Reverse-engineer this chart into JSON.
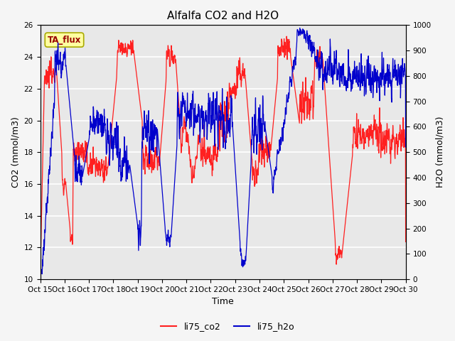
{
  "title": "Alfalfa CO2 and H2O",
  "xlabel": "Time",
  "ylabel_left": "CO2 (mmol/m3)",
  "ylabel_right": "H2O (mmol/m3)",
  "ylim_left": [
    10,
    26
  ],
  "ylim_right": [
    0,
    1000
  ],
  "yticks_left": [
    10,
    12,
    14,
    16,
    18,
    20,
    22,
    24,
    26
  ],
  "yticks_right": [
    0,
    100,
    200,
    300,
    400,
    500,
    600,
    700,
    800,
    900,
    1000
  ],
  "xtick_labels": [
    "Oct 15",
    "Oct 16",
    "Oct 17",
    "Oct 18",
    "Oct 19",
    "Oct 20",
    "Oct 21",
    "Oct 22",
    "Oct 23",
    "Oct 24",
    "Oct 25",
    "Oct 26",
    "Oct 27",
    "Oct 28",
    "Oct 29",
    "Oct 30"
  ],
  "co2_color": "#FF2020",
  "h2o_color": "#0000CC",
  "legend_label_co2": "li75_co2",
  "legend_label_h2o": "li75_h2o",
  "annotation_text": "TA_flux",
  "annotation_bg": "#FFFFA0",
  "annotation_border": "#AAAA00",
  "plot_bg_color": "#E8E8E8",
  "fig_bg_color": "#F5F5F5",
  "grid_color": "#FFFFFF",
  "title_fontsize": 11,
  "axis_label_fontsize": 9,
  "tick_fontsize": 7.5,
  "legend_fontsize": 9,
  "line_width": 0.9
}
